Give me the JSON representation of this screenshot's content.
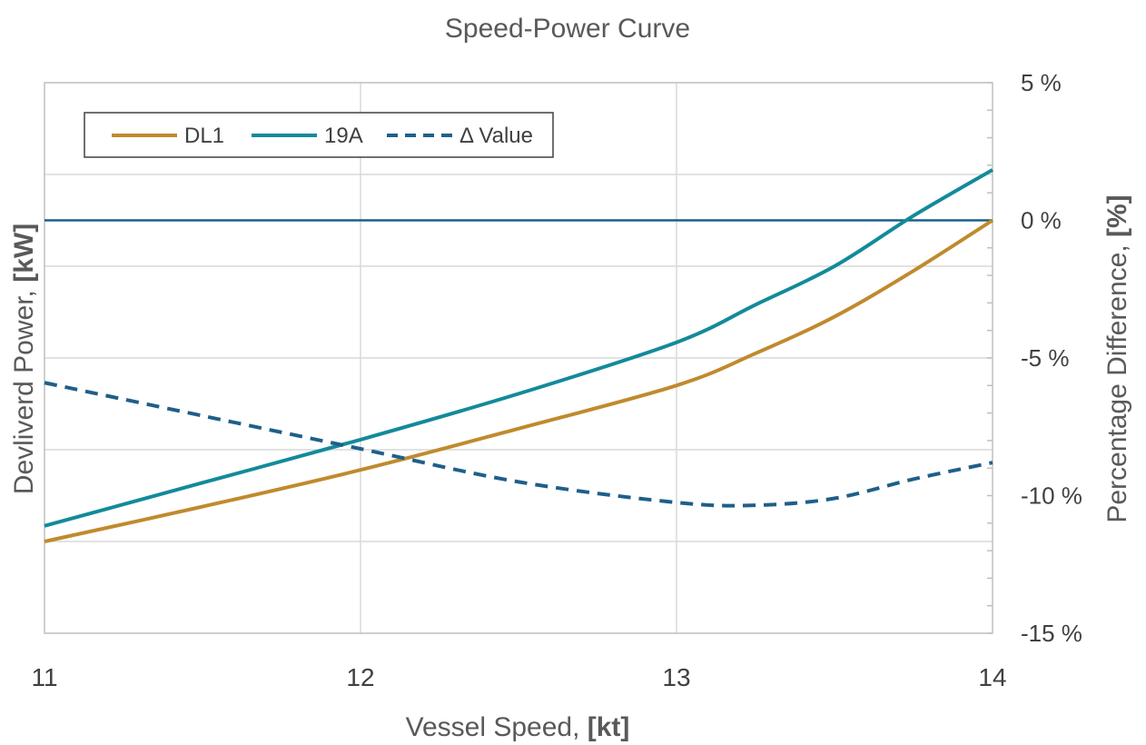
{
  "chart_data": {
    "type": "line",
    "title": "Speed-Power Curve",
    "xlabel": {
      "text": "Vessel Speed, ",
      "unit": "[kt]"
    },
    "ylabel_left": {
      "text": "Devliverd Power, ",
      "unit": "[kW]"
    },
    "ylabel_right": {
      "text": "Percentage Difference, ",
      "unit": "[%]"
    },
    "x_ticks": [
      "11",
      "12",
      "13",
      "14"
    ],
    "y_right_ticks": [
      "5 %",
      "0 %",
      "-5 %",
      "-10 %",
      "-15 %"
    ],
    "xlim": [
      11,
      14
    ],
    "y_left_range": [
      0,
      6
    ],
    "y_right_range": [
      -15,
      5
    ],
    "grid": true,
    "legend_position": "top-left",
    "series": [
      {
        "name": "DL1",
        "axis": "left",
        "style": "solid",
        "color": "#c08a2e",
        "x": [
          11,
          11.5,
          12,
          12.5,
          13,
          13.25,
          13.5,
          13.75,
          14
        ],
        "y": [
          1.0,
          1.38,
          1.78,
          2.23,
          2.7,
          3.05,
          3.45,
          3.95,
          4.5
        ]
      },
      {
        "name": "19A",
        "axis": "left",
        "style": "solid",
        "color": "#138a9a",
        "x": [
          11,
          11.5,
          12,
          12.5,
          13,
          13.25,
          13.5,
          13.75,
          14
        ],
        "y": [
          1.17,
          1.64,
          2.11,
          2.61,
          3.17,
          3.58,
          4.0,
          4.55,
          5.05
        ]
      },
      {
        "name": "Δ Value",
        "axis": "right",
        "style": "dashed",
        "color": "#1f5f8a",
        "x": [
          11,
          11.5,
          12,
          12.5,
          13,
          13.25,
          13.5,
          13.75,
          14
        ],
        "y": [
          -5.9,
          -7.1,
          -8.3,
          -9.5,
          -10.25,
          -10.35,
          -10.1,
          -9.4,
          -8.8
        ]
      }
    ],
    "reference_lines": [
      {
        "axis": "right",
        "value": 0,
        "color": "#1f5f8a"
      }
    ]
  }
}
